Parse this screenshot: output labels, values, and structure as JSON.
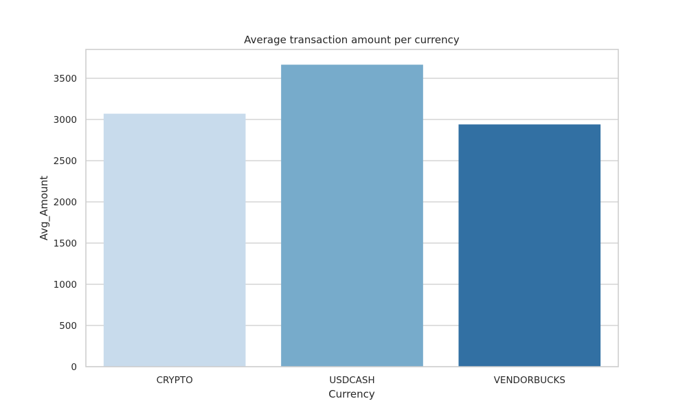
{
  "chart_data": {
    "type": "bar",
    "title": "Average transaction amount per currency",
    "xlabel": "Currency",
    "ylabel": "Avg_Amount",
    "categories": [
      "CRYPTO",
      "USDCASH",
      "VENDORBUCKS"
    ],
    "values": [
      3070,
      3665,
      2940
    ],
    "colors": [
      "#c8dbec",
      "#77abcb",
      "#3270a3"
    ],
    "ylim": [
      0,
      3850
    ],
    "yticks": [
      0,
      500,
      1000,
      1500,
      2000,
      2500,
      3000,
      3500
    ],
    "grid": true,
    "legend": "none"
  }
}
